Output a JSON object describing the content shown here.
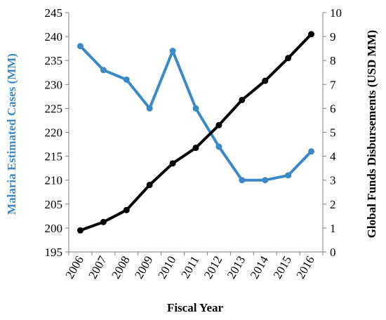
{
  "chart_data": {
    "type": "line",
    "xlabel": "Fiscal Year",
    "categories": [
      "2006",
      "2007",
      "2008",
      "2009",
      "2010",
      "2011",
      "2012",
      "2013",
      "2014",
      "2015",
      "2016"
    ],
    "y_left": {
      "label": "Malaria Estimated Cases (MM)",
      "ylim": [
        195,
        245
      ],
      "ticks": [
        195,
        200,
        205,
        210,
        215,
        220,
        225,
        230,
        235,
        240,
        245
      ]
    },
    "y_right": {
      "label": "Global Funds Disbursements (USD MM)",
      "ylim": [
        0,
        10
      ],
      "ticks": [
        0,
        1,
        2,
        3,
        4,
        5,
        6,
        7,
        8,
        9,
        10
      ]
    },
    "series": [
      {
        "axis": "left",
        "color": "#3b8ac4",
        "values": [
          238,
          233,
          231,
          225,
          237,
          225,
          217,
          210,
          210,
          211,
          216
        ]
      },
      {
        "axis": "right",
        "color": "#000000",
        "values": [
          0.9,
          1.25,
          1.75,
          2.8,
          3.7,
          4.35,
          5.3,
          6.35,
          7.15,
          8.1,
          9.1
        ]
      }
    ],
    "grid": false,
    "legend": "none"
  }
}
